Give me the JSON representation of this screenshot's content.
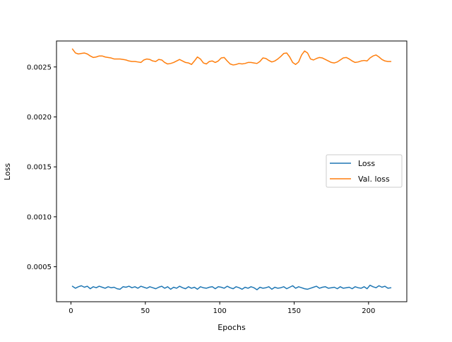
{
  "chart_data": {
    "type": "line",
    "title": "",
    "xlabel": "Epochs",
    "ylabel": "Loss",
    "xlim": [
      -9.7,
      225.7
    ],
    "ylim": [
      0.00015,
      0.00276
    ],
    "xticks": [
      0,
      50,
      100,
      150,
      200
    ],
    "yticks": [
      0.0005,
      0.001,
      0.0015,
      0.002,
      0.0025
    ],
    "ytick_labels": [
      "0.0005",
      "0.0010",
      "0.0015",
      "0.0020",
      "0.0025"
    ],
    "grid": false,
    "legend": "center-right",
    "series": [
      {
        "name": "Loss",
        "color": "#1f77b4",
        "x": [
          1,
          3,
          5,
          7,
          9,
          11,
          13,
          15,
          17,
          19,
          21,
          23,
          25,
          27,
          29,
          31,
          33,
          35,
          37,
          39,
          41,
          43,
          45,
          47,
          49,
          51,
          53,
          55,
          57,
          59,
          61,
          63,
          65,
          67,
          69,
          71,
          73,
          75,
          77,
          79,
          81,
          83,
          85,
          87,
          89,
          91,
          93,
          95,
          97,
          99,
          101,
          103,
          105,
          107,
          109,
          111,
          113,
          115,
          117,
          119,
          121,
          123,
          125,
          127,
          129,
          131,
          133,
          135,
          137,
          139,
          141,
          143,
          145,
          147,
          149,
          151,
          153,
          155,
          157,
          159,
          161,
          163,
          165,
          167,
          169,
          171,
          173,
          175,
          177,
          179,
          181,
          183,
          185,
          187,
          189,
          191,
          193,
          195,
          197,
          199,
          201,
          203,
          205,
          207,
          209,
          211,
          213,
          215
        ],
        "y": [
          0.000305,
          0.000285,
          0.0003,
          0.00031,
          0.000295,
          0.000305,
          0.00028,
          0.0003,
          0.00029,
          0.000305,
          0.000295,
          0.000285,
          0.0003,
          0.00029,
          0.000295,
          0.00028,
          0.000275,
          0.0003,
          0.000295,
          0.000305,
          0.00029,
          0.0003,
          0.000285,
          0.000305,
          0.000295,
          0.000285,
          0.0003,
          0.00029,
          0.00028,
          0.000295,
          0.000305,
          0.000285,
          0.0003,
          0.000275,
          0.000295,
          0.000285,
          0.000305,
          0.00029,
          0.00028,
          0.0003,
          0.000285,
          0.000295,
          0.000275,
          0.0003,
          0.00029,
          0.000285,
          0.000295,
          0.0003,
          0.00028,
          0.0003,
          0.000295,
          0.000285,
          0.000305,
          0.00029,
          0.00028,
          0.0003,
          0.00029,
          0.000275,
          0.000295,
          0.000285,
          0.0003,
          0.00029,
          0.00027,
          0.000295,
          0.000285,
          0.00029,
          0.0003,
          0.000275,
          0.000295,
          0.000285,
          0.00029,
          0.0003,
          0.00028,
          0.000295,
          0.00031,
          0.000285,
          0.0003,
          0.00029,
          0.00028,
          0.000275,
          0.000285,
          0.000295,
          0.000305,
          0.000285,
          0.000295,
          0.0003,
          0.000285,
          0.00029,
          0.000295,
          0.00028,
          0.0003,
          0.000285,
          0.00029,
          0.000295,
          0.00028,
          0.0003,
          0.00029,
          0.000285,
          0.0003,
          0.00028,
          0.000315,
          0.0003,
          0.00029,
          0.00031,
          0.000295,
          0.000305,
          0.000285,
          0.00029
        ]
      },
      {
        "name": "Val. loss",
        "color": "#ff7f0e",
        "x": [
          1,
          3,
          5,
          7,
          9,
          11,
          13,
          15,
          17,
          19,
          21,
          23,
          25,
          27,
          29,
          31,
          33,
          35,
          37,
          39,
          41,
          43,
          45,
          47,
          49,
          51,
          53,
          55,
          57,
          59,
          61,
          63,
          65,
          67,
          69,
          71,
          73,
          75,
          77,
          79,
          81,
          83,
          85,
          87,
          89,
          91,
          93,
          95,
          97,
          99,
          101,
          103,
          105,
          107,
          109,
          111,
          113,
          115,
          117,
          119,
          121,
          123,
          125,
          127,
          129,
          131,
          133,
          135,
          137,
          139,
          141,
          143,
          145,
          147,
          149,
          151,
          153,
          155,
          157,
          159,
          161,
          163,
          165,
          167,
          169,
          171,
          173,
          175,
          177,
          179,
          181,
          183,
          185,
          187,
          189,
          191,
          193,
          195,
          197,
          199,
          201,
          203,
          205,
          207,
          209,
          211,
          213,
          215
        ],
        "y": [
          0.00268,
          0.00264,
          0.00263,
          0.002635,
          0.00264,
          0.00263,
          0.00261,
          0.002595,
          0.0026,
          0.00261,
          0.00261,
          0.0026,
          0.002595,
          0.00259,
          0.00258,
          0.00258,
          0.00258,
          0.002575,
          0.00257,
          0.00256,
          0.002555,
          0.002555,
          0.00255,
          0.002545,
          0.00257,
          0.00258,
          0.002575,
          0.00256,
          0.002555,
          0.002575,
          0.00257,
          0.002545,
          0.00253,
          0.002535,
          0.002545,
          0.00256,
          0.002575,
          0.00256,
          0.002545,
          0.00254,
          0.002525,
          0.00256,
          0.0026,
          0.00258,
          0.00254,
          0.00253,
          0.002555,
          0.00256,
          0.002545,
          0.00256,
          0.00259,
          0.002595,
          0.00256,
          0.00253,
          0.00252,
          0.002525,
          0.002535,
          0.00253,
          0.002535,
          0.002545,
          0.002545,
          0.00254,
          0.002535,
          0.002555,
          0.00259,
          0.002585,
          0.002565,
          0.00255,
          0.00256,
          0.00258,
          0.002605,
          0.002635,
          0.00264,
          0.0026,
          0.002545,
          0.002525,
          0.00255,
          0.00262,
          0.00266,
          0.00264,
          0.00258,
          0.00257,
          0.002585,
          0.002595,
          0.00259,
          0.002575,
          0.00256,
          0.002545,
          0.00254,
          0.00255,
          0.00257,
          0.00259,
          0.002595,
          0.00258,
          0.00256,
          0.002545,
          0.00255,
          0.00256,
          0.002565,
          0.00256,
          0.00259,
          0.00261,
          0.00262,
          0.0026,
          0.002575,
          0.00256,
          0.002555,
          0.002555
        ]
      }
    ]
  }
}
